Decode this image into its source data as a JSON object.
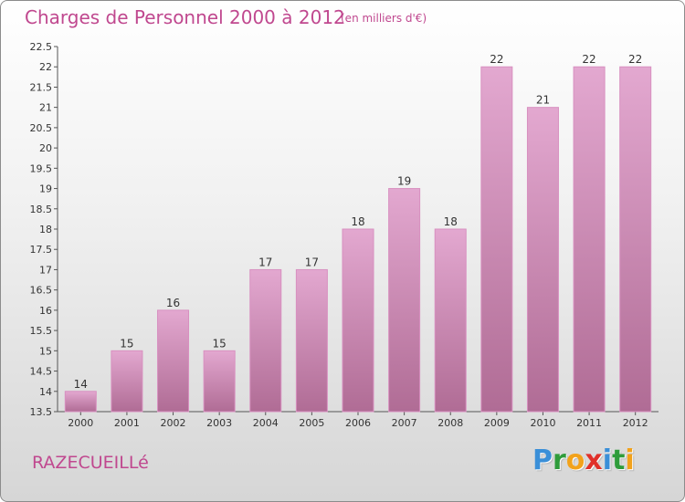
{
  "header": {
    "title": "Charges de Personnel 2000 à 2012",
    "subtitle": "(en milliers d'€)"
  },
  "footer": {
    "place": "RAZECUEILLé",
    "brand_letters": [
      {
        "ch": "P",
        "color": "#3a8fd8"
      },
      {
        "ch": "r",
        "color": "#2f9c3b"
      },
      {
        "ch": "o",
        "color": "#f2a21b"
      },
      {
        "ch": "x",
        "color": "#e0302a"
      },
      {
        "ch": "i",
        "color": "#3a8fd8"
      },
      {
        "ch": "t",
        "color": "#2f9c3b"
      },
      {
        "ch": "i",
        "color": "#f2a21b"
      }
    ]
  },
  "colors": {
    "bar_top": "#e3a8d0",
    "bar_bottom": "#b06c95",
    "bar_edge": "#d890c0",
    "title": "#c0488f",
    "axis_text": "#333333"
  },
  "chart_data": {
    "type": "bar",
    "categories": [
      "2000",
      "2001",
      "2002",
      "2003",
      "2004",
      "2005",
      "2006",
      "2007",
      "2008",
      "2009",
      "2010",
      "2011",
      "2012"
    ],
    "values": [
      14,
      15,
      16,
      15,
      17,
      17,
      18,
      19,
      18,
      22,
      21,
      22,
      22
    ],
    "data_labels": [
      "14",
      "15",
      "16",
      "15",
      "17",
      "17",
      "18",
      "19",
      "18",
      "22",
      "21",
      "22",
      "22"
    ],
    "title": "Charges de Personnel 2000 à 2012",
    "subtitle": "(en milliers d'€)",
    "xlabel": "",
    "ylabel": "",
    "ylim": [
      13.5,
      22.5
    ],
    "yticks": [
      13.5,
      14,
      14.5,
      15,
      15.5,
      16,
      16.5,
      17,
      17.5,
      18,
      18.5,
      19,
      19.5,
      20,
      20.5,
      21,
      21.5,
      22,
      22.5
    ],
    "ytick_labels": [
      "13.5",
      "14",
      "14.5",
      "15",
      "15.5",
      "16",
      "16.5",
      "17",
      "17.5",
      "18",
      "18.5",
      "19",
      "19.5",
      "20",
      "20.5",
      "21",
      "21.5",
      "22",
      "22.5"
    ],
    "grid": false,
    "legend": "none"
  }
}
